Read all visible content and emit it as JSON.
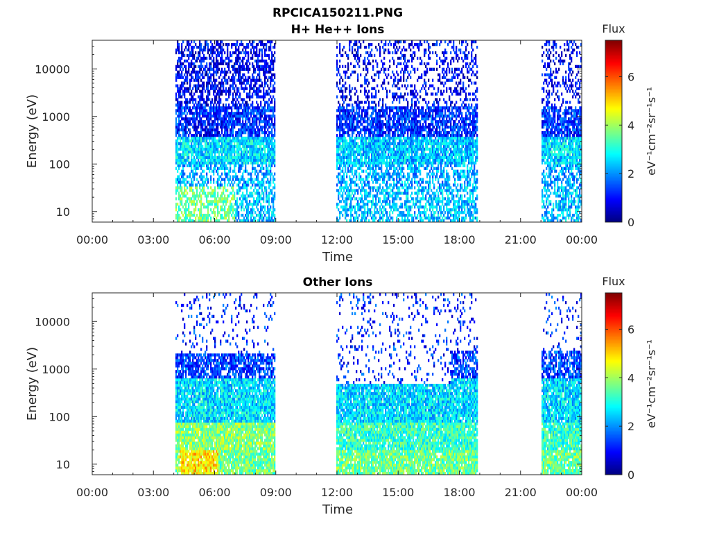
{
  "figure": {
    "title": "RPCICA150211.PNG"
  },
  "chart_data": [
    {
      "type": "heatmap",
      "title": "H+ He++ Ions",
      "xlabel": "Time",
      "ylabel": "Energy (eV)",
      "x_ticks": [
        "00:00",
        "03:00",
        "06:00",
        "09:00",
        "12:00",
        "15:00",
        "18:00",
        "21:00",
        "00:00"
      ],
      "x_range_hours": [
        0,
        24
      ],
      "y_scale": "log",
      "y_ticks": [
        10,
        100,
        1000,
        10000
      ],
      "y_tick_labels": [
        "10",
        "100",
        "1000",
        "10000"
      ],
      "ylim": [
        6,
        40000
      ],
      "grid": false,
      "colorbar": {
        "label": "Flux",
        "units": "eV⁻¹cm⁻²sr⁻¹s⁻¹",
        "ticks": [
          0,
          2,
          4,
          6
        ],
        "range": [
          0,
          7.5
        ],
        "colormap": "jet"
      },
      "data_intervals_hours": [
        [
          4.05,
          9.0
        ],
        [
          12.0,
          18.9
        ],
        [
          22.0,
          24.0
        ]
      ]
    },
    {
      "type": "heatmap",
      "title": "Other Ions",
      "xlabel": "Time",
      "ylabel": "Energy (eV)",
      "x_ticks": [
        "00:00",
        "03:00",
        "06:00",
        "09:00",
        "12:00",
        "15:00",
        "18:00",
        "21:00",
        "00:00"
      ],
      "x_range_hours": [
        0,
        24
      ],
      "y_scale": "log",
      "y_ticks": [
        10,
        100,
        1000,
        10000
      ],
      "y_tick_labels": [
        "10",
        "100",
        "1000",
        "10000"
      ],
      "ylim": [
        6,
        40000
      ],
      "grid": false,
      "colorbar": {
        "label": "Flux",
        "units": "eV⁻¹cm⁻²sr⁻¹s⁻¹",
        "ticks": [
          0,
          2,
          4,
          6
        ],
        "range": [
          0,
          7.5
        ],
        "colormap": "jet"
      },
      "data_intervals_hours": [
        [
          4.05,
          9.0
        ],
        [
          12.0,
          18.9
        ],
        [
          22.0,
          24.0
        ]
      ]
    }
  ]
}
